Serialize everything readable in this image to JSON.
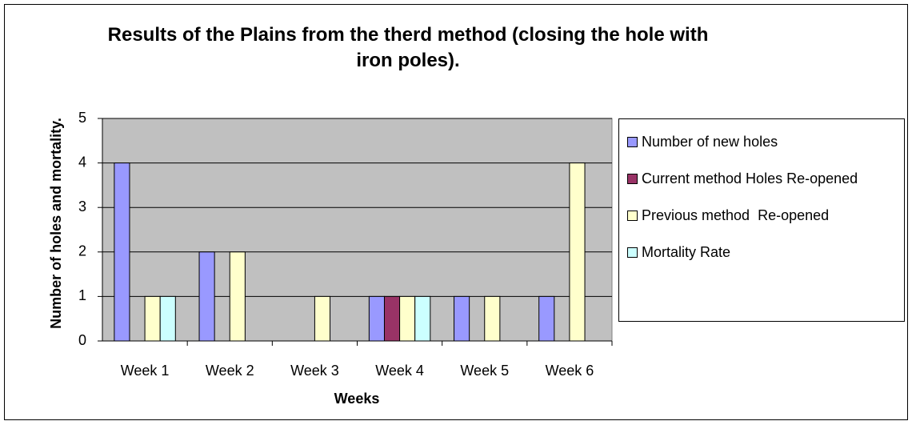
{
  "chart_data": {
    "type": "bar",
    "title": "Results of the Plains from the therd method (closing the hole with iron poles).",
    "x_label": "Weeks",
    "y_label": "Number of holes and mortality.",
    "categories": [
      "Week 1",
      "Week 2",
      "Week 3",
      "Week 4",
      "Week 5",
      "Week 6"
    ],
    "series": [
      {
        "name": "Number of new holes",
        "color": "#9999ff",
        "values": [
          4,
          2,
          0,
          1,
          1,
          1
        ]
      },
      {
        "name": "Current method Holes Re-opened",
        "color": "#993366",
        "values": [
          0,
          0,
          0,
          1,
          0,
          0
        ]
      },
      {
        "name": "Previous method  Re-opened",
        "color": "#ffffcc",
        "values": [
          1,
          2,
          1,
          1,
          1,
          4
        ]
      },
      {
        "name": "Mortality Rate",
        "color": "#ccffff",
        "values": [
          1,
          0,
          0,
          1,
          0,
          0
        ]
      }
    ],
    "ylim": [
      0,
      5
    ],
    "yticks": [
      0,
      1,
      2,
      3,
      4,
      5
    ],
    "grid": true,
    "legend": "right"
  }
}
